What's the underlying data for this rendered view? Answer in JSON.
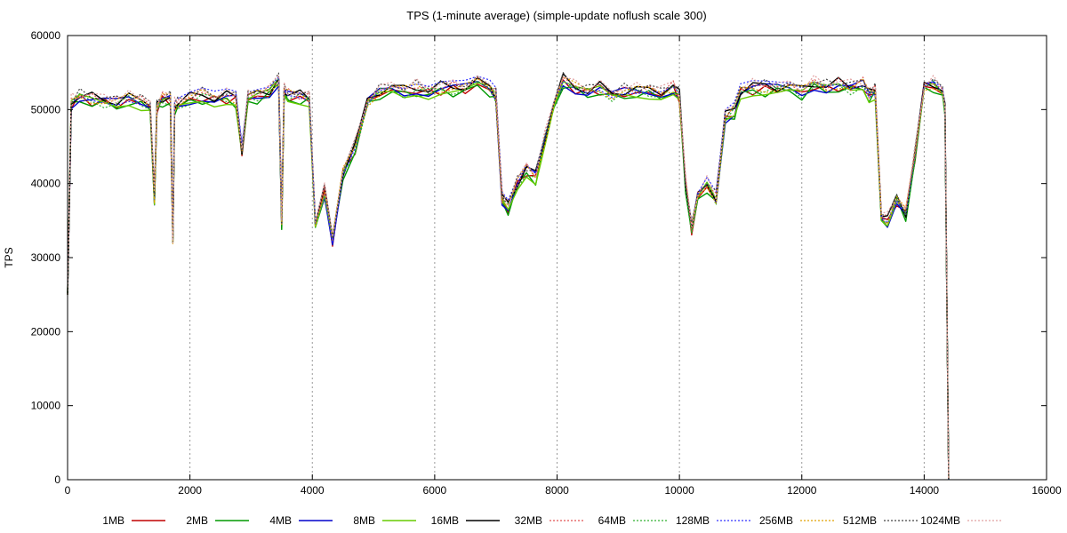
{
  "chart_data": {
    "type": "line",
    "title": "TPS (1-minute average) (simple-update noflush scale 300)",
    "xlabel": "",
    "ylabel": "TPS",
    "xlim": [
      0,
      16000
    ],
    "ylim": [
      0,
      60000
    ],
    "xticks": [
      0,
      2000,
      4000,
      6000,
      8000,
      10000,
      12000,
      14000,
      16000
    ],
    "yticks": [
      0,
      10000,
      20000,
      30000,
      40000,
      50000,
      60000
    ],
    "grid": "vertical dotted",
    "legend_position": "bottom",
    "x": [
      0,
      60,
      200,
      400,
      600,
      800,
      1000,
      1200,
      1350,
      1420,
      1460,
      1550,
      1680,
      1720,
      1750,
      1800,
      2000,
      2200,
      2400,
      2600,
      2750,
      2850,
      2950,
      3100,
      3300,
      3450,
      3500,
      3540,
      3600,
      3800,
      3950,
      4050,
      4200,
      4330,
      4500,
      4700,
      4900,
      5100,
      5300,
      5500,
      5700,
      5900,
      6100,
      6300,
      6500,
      6700,
      6900,
      7000,
      7100,
      7200,
      7350,
      7500,
      7650,
      7800,
      7950,
      8100,
      8300,
      8500,
      8700,
      8900,
      9100,
      9300,
      9500,
      9700,
      9900,
      10000,
      10100,
      10200,
      10300,
      10450,
      10600,
      10750,
      10900,
      11000,
      11200,
      11400,
      11600,
      11800,
      12000,
      12200,
      12400,
      12600,
      12800,
      13000,
      13100,
      13200,
      13300,
      13400,
      13550,
      13700,
      13850,
      14000,
      14150,
      14300,
      14340,
      14400
    ],
    "base_values": [
      25000,
      51000,
      51800,
      51500,
      51200,
      51000,
      51500,
      51000,
      51000,
      38000,
      50500,
      51500,
      51500,
      32000,
      50500,
      50800,
      51500,
      52000,
      51500,
      51800,
      51500,
      44500,
      51500,
      52000,
      52500,
      54000,
      35000,
      52500,
      52000,
      51800,
      51500,
      35000,
      39000,
      32500,
      41500,
      45000,
      51000,
      52500,
      53000,
      52500,
      53000,
      52500,
      53000,
      53000,
      53000,
      53500,
      53000,
      52000,
      38000,
      37000,
      40000,
      42000,
      41000,
      46000,
      51000,
      54000,
      53000,
      52500,
      53000,
      52000,
      52500,
      52500,
      52500,
      52500,
      53000,
      52000,
      40000,
      34000,
      38000,
      40000,
      38000,
      49000,
      50000,
      52500,
      53000,
      53000,
      53000,
      53000,
      52500,
      53500,
      53000,
      53500,
      53000,
      53500,
      52000,
      52500,
      36000,
      35000,
      38000,
      36000,
      44000,
      53000,
      53500,
      52500,
      50000,
      0
    ],
    "series": [
      {
        "name": "1MB",
        "color": "#c00000",
        "dash": "solid",
        "width": 1.4,
        "offset": -700
      },
      {
        "name": "2MB",
        "color": "#009900",
        "dash": "solid",
        "width": 1.4,
        "offset": -1200
      },
      {
        "name": "4MB",
        "color": "#0000cc",
        "dash": "solid",
        "width": 1.4,
        "offset": -400
      },
      {
        "name": "8MB",
        "color": "#66cc00",
        "dash": "solid",
        "width": 1.4,
        "offset": -900
      },
      {
        "name": "16MB",
        "color": "#000000",
        "dash": "solid",
        "width": 1.4,
        "offset": 300
      },
      {
        "name": "32MB",
        "color": "#e05050",
        "dash": "dotted",
        "width": 1.2,
        "offset": 400
      },
      {
        "name": "64MB",
        "color": "#30b030",
        "dash": "dotted",
        "width": 1.2,
        "offset": -600
      },
      {
        "name": "128MB",
        "color": "#3333ff",
        "dash": "dotted",
        "width": 1.2,
        "offset": 600
      },
      {
        "name": "256MB",
        "color": "#e0a000",
        "dash": "dotted",
        "width": 1.2,
        "offset": 0
      },
      {
        "name": "512MB",
        "color": "#444444",
        "dash": "dotted",
        "width": 1.2,
        "offset": 800
      },
      {
        "name": "1024MB",
        "color": "#e0a0a0",
        "dash": "dotted",
        "width": 1.2,
        "offset": 1000
      }
    ]
  }
}
